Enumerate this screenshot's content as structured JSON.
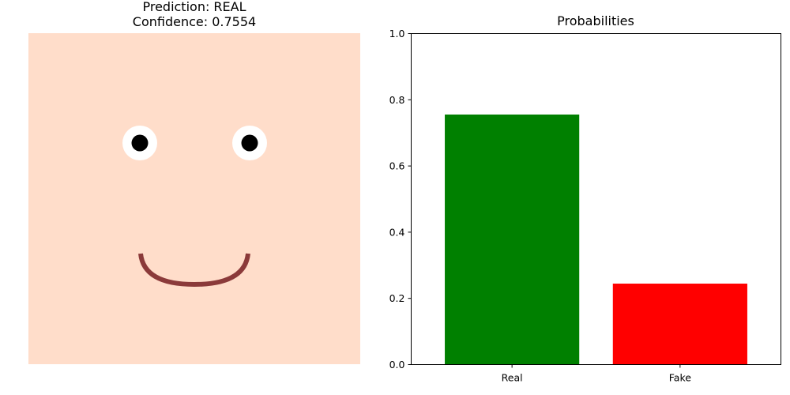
{
  "left_panel": {
    "title_line1": "Prediction: REAL",
    "title_line2": "Confidence: 0.7554",
    "image": {
      "skin_color": "#FFDDCA",
      "eye_white_color": "#FFFFFF",
      "pupil_color": "#000000",
      "mouth_color": "#8B3A3A"
    }
  },
  "chart_data": {
    "type": "bar",
    "title": "Probabilities",
    "categories": [
      "Real",
      "Fake"
    ],
    "values": [
      0.7554,
      0.2446
    ],
    "colors": [
      "#008000",
      "#FF0000"
    ],
    "ylim": [
      0,
      1.0
    ],
    "yticks": [
      "0.0",
      "0.2",
      "0.4",
      "0.6",
      "0.8",
      "1.0"
    ],
    "xlabel": "",
    "ylabel": "",
    "grid": false
  }
}
